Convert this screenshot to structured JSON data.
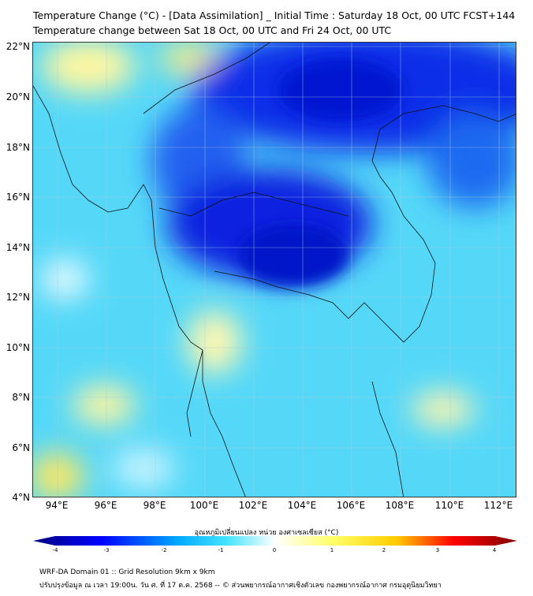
{
  "header": {
    "title": "Temperature Change (°C) - [Data Assimilation] _ Initial Time : Saturday 18 Oct, 00 UTC FCST+144",
    "subtitle": "Temperature change between Sat 18 Oct, 00 UTC and Fri 24 Oct, 00 UTC"
  },
  "map": {
    "lat_labels": [
      "22°N",
      "20°N",
      "18°N",
      "16°N",
      "14°N",
      "12°N",
      "10°N",
      "8°N",
      "6°N",
      "4°N"
    ],
    "lon_labels": [
      "94°E",
      "96°E",
      "98°E",
      "100°E",
      "102°E",
      "104°E",
      "106°E",
      "108°E",
      "110°E",
      "112°E"
    ]
  },
  "colorbar": {
    "title": "อุณหภูมิเปลี่ยนแปลง หน่วย องศาเซลเซียส (°C)",
    "ticks": [
      "-4",
      "-3",
      "-2",
      "-1",
      "0",
      "1",
      "2",
      "3",
      "4"
    ],
    "colors": [
      "#00007f",
      "#0000ff",
      "#00aaff",
      "#44e4ff",
      "#ffffff",
      "#ffff66",
      "#ffcc00",
      "#ff0000",
      "#7f0000"
    ]
  },
  "footer": {
    "line1": "WRF-DA Domain 01 :: Grid Resolution 9km x 9km",
    "line2": "ปรับปรุงข้อมูล ณ เวลา 19:00น. วัน ศ. ที่ 17 ต.ค. 2568 -- © ส่วนพยากรณ์อากาศเชิงตัวเลข กองพยากรณ์อากาศ กรมอุตุนิยมวิทยา"
  }
}
